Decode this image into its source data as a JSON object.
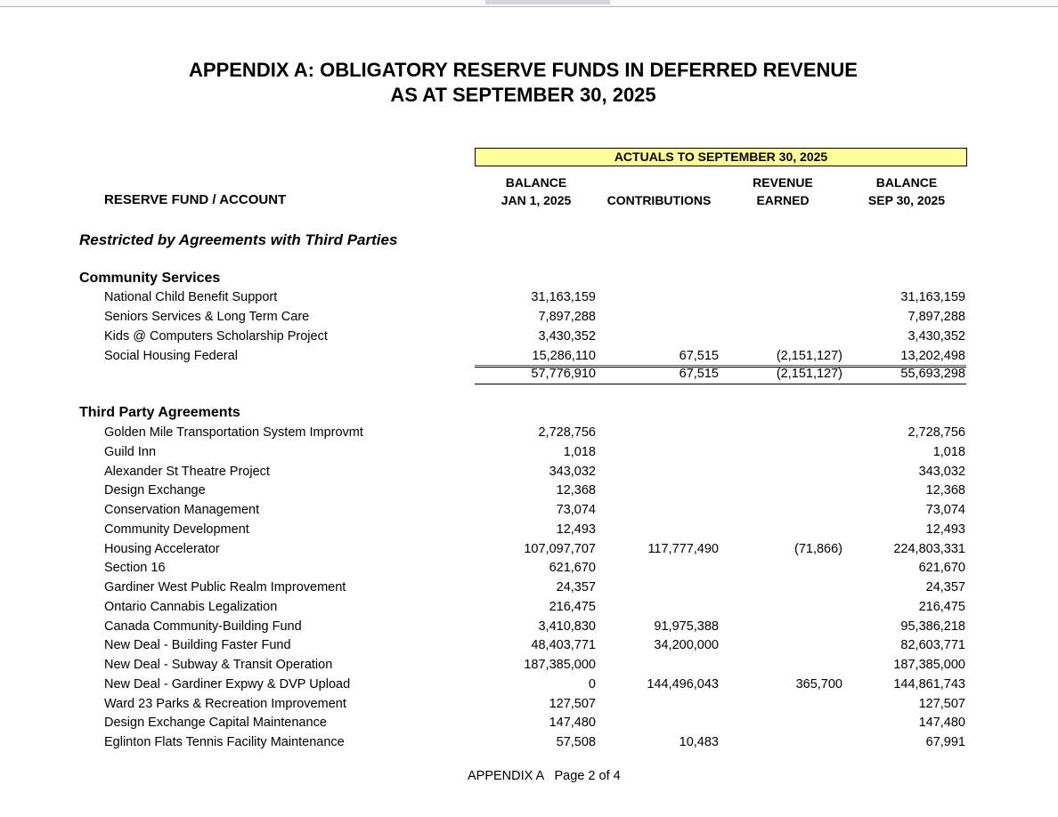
{
  "title_line1": "APPENDIX A: OBLIGATORY RESERVE FUNDS IN DEFERRED REVENUE",
  "title_line2": "AS AT SEPTEMBER 30, 2025",
  "banner": "ACTUALS TO SEPTEMBER 30, 2025",
  "columns": {
    "account": "RESERVE FUND / ACCOUNT",
    "balance_open_1": "BALANCE",
    "balance_open_2": "JAN 1, 2025",
    "contributions": "CONTRIBUTIONS",
    "revenue_1": "REVENUE",
    "revenue_2": "EARNED",
    "balance_close_1": "BALANCE",
    "balance_close_2": "SEP 30, 2025"
  },
  "category": "Restricted by Agreements with Third Parties",
  "sections": [
    {
      "name": "Community Services",
      "rows": [
        [
          "National Child Benefit Support",
          "31,163,159",
          "",
          "",
          "31,163,159"
        ],
        [
          "Seniors Services & Long Term Care",
          "7,897,288",
          "",
          "",
          "7,897,288"
        ],
        [
          "Kids @ Computers Scholarship Project",
          "3,430,352",
          "",
          "",
          "3,430,352"
        ],
        [
          "Social Housing Federal",
          "15,286,110",
          "67,515",
          "(2,151,127)",
          "13,202,498"
        ]
      ],
      "total": [
        "",
        "57,776,910",
        "67,515",
        "(2,151,127)",
        "55,693,298"
      ]
    },
    {
      "name": "Third Party Agreements",
      "rows": [
        [
          "Golden Mile Transportation System Improvmt",
          "2,728,756",
          "",
          "",
          "2,728,756"
        ],
        [
          "Guild Inn",
          "1,018",
          "",
          "",
          "1,018"
        ],
        [
          "Alexander St Theatre Project",
          "343,032",
          "",
          "",
          "343,032"
        ],
        [
          "Design Exchange",
          "12,368",
          "",
          "",
          "12,368"
        ],
        [
          "Conservation Management",
          "73,074",
          "",
          "",
          "73,074"
        ],
        [
          "Community Development",
          "12,493",
          "",
          "",
          "12,493"
        ],
        [
          "Housing Accelerator",
          "107,097,707",
          "117,777,490",
          "(71,866)",
          "224,803,331"
        ],
        [
          "Section 16",
          "621,670",
          "",
          "",
          "621,670"
        ],
        [
          "Gardiner West Public Realm Improvement",
          "24,357",
          "",
          "",
          "24,357"
        ],
        [
          "Ontario Cannabis Legalization",
          "216,475",
          "",
          "",
          "216,475"
        ],
        [
          "Canada Community-Building Fund",
          "3,410,830",
          "91,975,388",
          "",
          "95,386,218"
        ],
        [
          "New Deal - Building Faster Fund",
          "48,403,771",
          "34,200,000",
          "",
          "82,603,771"
        ],
        [
          "New Deal - Subway & Transit Operation",
          "187,385,000",
          "",
          "",
          "187,385,000"
        ],
        [
          "New Deal - Gardiner Expwy & DVP Upload",
          "0",
          "144,496,043",
          "365,700",
          "144,861,743"
        ],
        [
          "Ward 23 Parks & Recreation Improvement",
          "127,507",
          "",
          "",
          "127,507"
        ],
        [
          "Design Exchange Capital Maintenance",
          "147,480",
          "",
          "",
          "147,480"
        ],
        [
          "Eglinton Flats Tennis Facility Maintenance",
          "57,508",
          "10,483",
          "",
          "67,991"
        ]
      ]
    }
  ],
  "footer": "APPENDIX A   Page 2 of 4",
  "colors": {
    "banner": "#ffff99"
  }
}
